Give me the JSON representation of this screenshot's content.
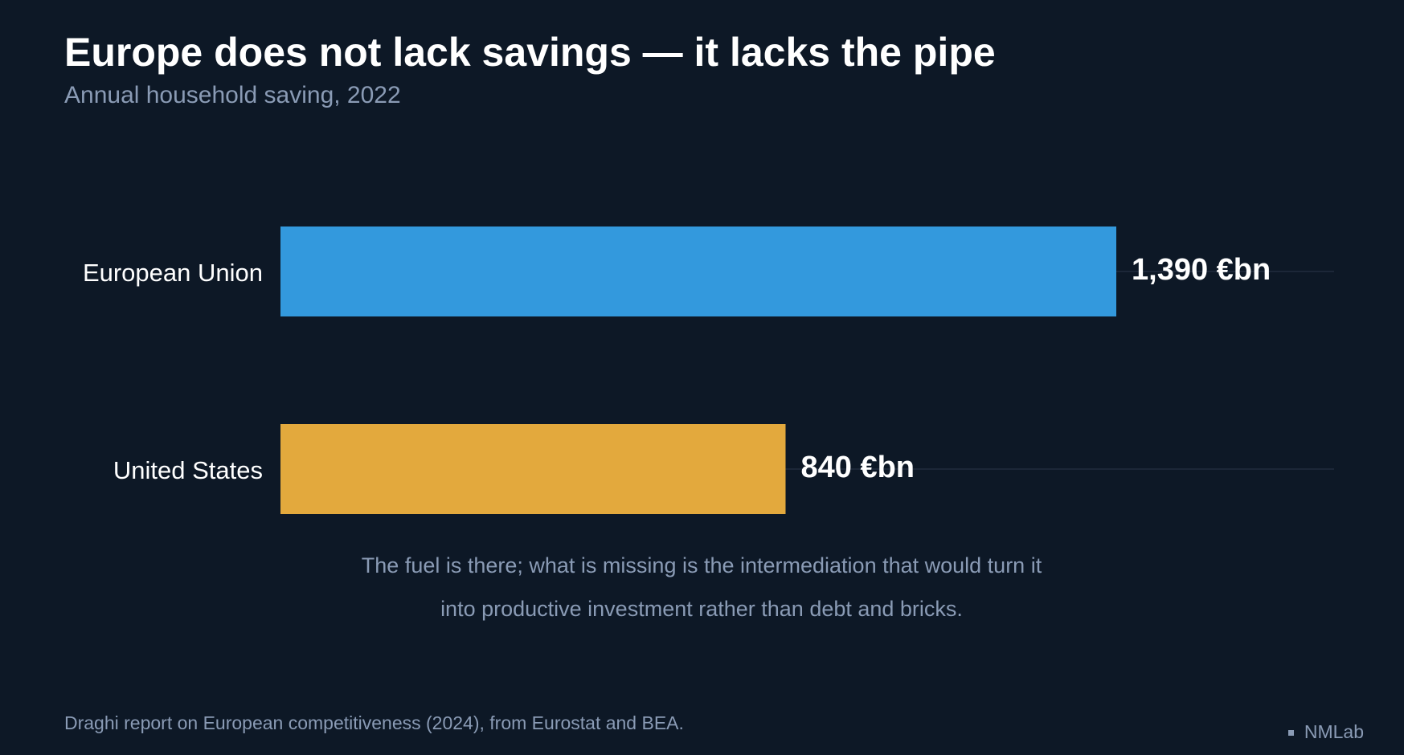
{
  "chart_data": {
    "type": "bar",
    "orientation": "horizontal",
    "title": "Europe does not lack savings — it lacks the pipe",
    "subtitle": "Annual household saving, 2022",
    "categories": [
      "European Union",
      "United States"
    ],
    "values": [
      1390,
      840
    ],
    "value_labels": [
      "1,390 €bn",
      "840 €bn"
    ],
    "colors": [
      "#3399dd",
      "#e3a93d"
    ],
    "annotation": [
      "The fuel is there; what is missing is the intermediation that would turn it",
      "into productive investment rather than debt and bricks."
    ],
    "source": "Draghi report on European competitiveness (2024), from Eurostat and BEA.",
    "brand": "NMLab"
  }
}
